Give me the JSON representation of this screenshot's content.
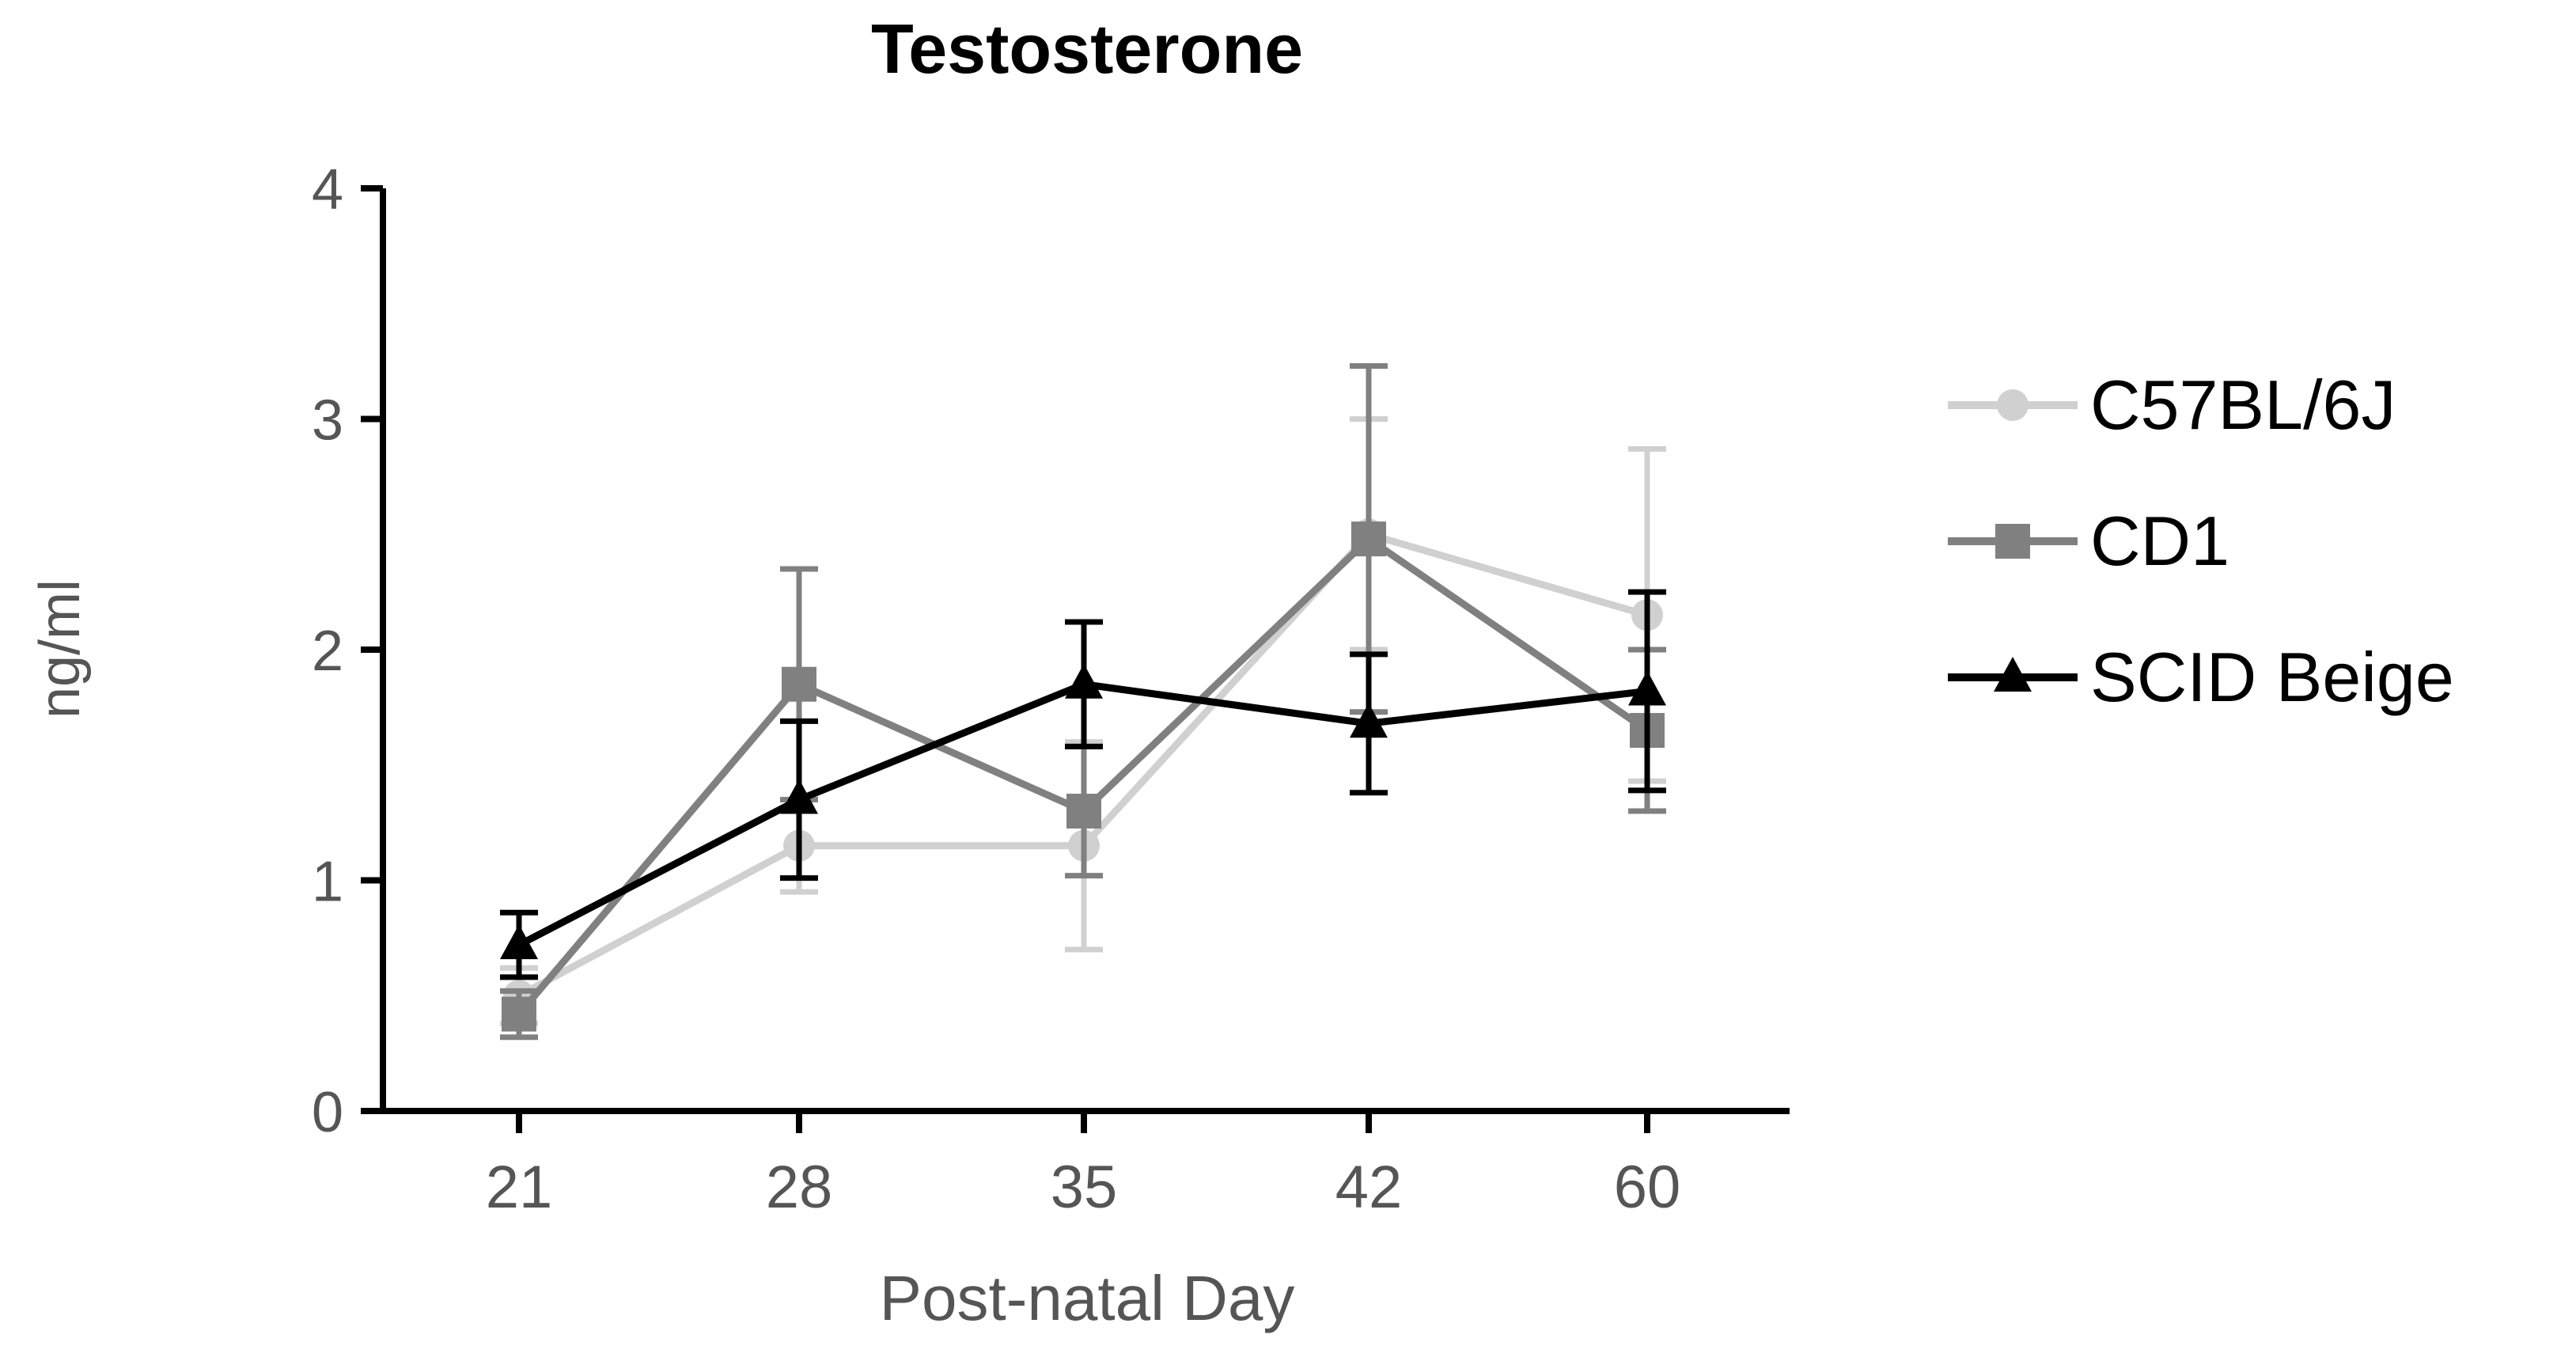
{
  "chart_data": {
    "type": "line",
    "title": "Testosterone",
    "xlabel": "Post-natal Day",
    "ylabel": "ng/ml",
    "categories": [
      "21",
      "28",
      "35",
      "42",
      "60"
    ],
    "ylim": [
      0,
      4
    ],
    "yticks": [
      0,
      1,
      2,
      3,
      4
    ],
    "ytick_labels": [
      "0",
      "1",
      "2",
      "3",
      "4"
    ],
    "grid": false,
    "legend_position": "right",
    "series": [
      {
        "name": "C57BL/6J",
        "color": "#d0d0d0",
        "marker": "circle",
        "values": [
          0.5,
          1.15,
          1.15,
          2.5,
          2.15
        ],
        "error": [
          0.12,
          0.2,
          0.45,
          0.5,
          0.72
        ]
      },
      {
        "name": "CD1",
        "color": "#808080",
        "marker": "square",
        "values": [
          0.42,
          1.85,
          1.3,
          2.48,
          1.65
        ],
        "error": [
          0.1,
          0.5,
          0.28,
          0.75,
          0.35
        ]
      },
      {
        "name": "SCID Beige",
        "color": "#000000",
        "marker": "triangle",
        "values": [
          0.72,
          1.35,
          1.85,
          1.68,
          1.82
        ],
        "error": [
          0.14,
          0.34,
          0.27,
          0.3,
          0.43
        ]
      }
    ]
  }
}
